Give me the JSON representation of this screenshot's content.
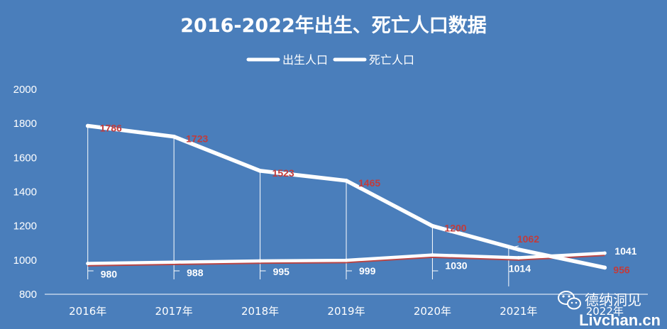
{
  "chart_data": {
    "type": "line",
    "title": "2016-2022年出生、死亡人口数据",
    "categories": [
      "2016年",
      "2017年",
      "2018年",
      "2019年",
      "2020年",
      "2021年",
      "2022年"
    ],
    "series": [
      {
        "name": "出生人口",
        "values": [
          1786,
          1723,
          1523,
          1465,
          1200,
          1062,
          956
        ],
        "color": "#ffffff",
        "label_color": "#c23b3b"
      },
      {
        "name": "死亡人口",
        "values": [
          980,
          988,
          995,
          999,
          1030,
          1014,
          1041
        ],
        "color": "#ffffff",
        "label_color": "#ffffff"
      }
    ],
    "ylim": [
      800,
      2000
    ],
    "yticks": [
      800,
      1000,
      1200,
      1400,
      1600,
      1800,
      2000
    ],
    "grid": false,
    "legend": "top-center"
  },
  "watermark": {
    "text": "德纳洞见",
    "url": "Livchan.cn",
    "icon": "wechat-icon"
  }
}
